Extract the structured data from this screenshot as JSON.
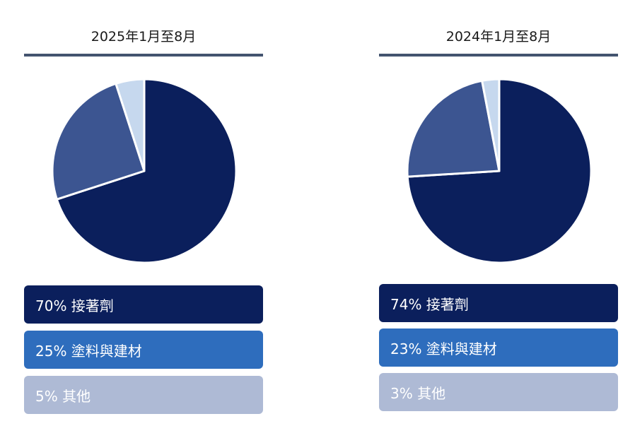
{
  "colors": {
    "slice_adhesives": "#0b1f5c",
    "slice_coatings": "#3c5591",
    "slice_other": "#c6d8ee",
    "legend_adhesives": "#0b1f5c",
    "legend_coatings": "#2e6dbd",
    "legend_other": "#aebad5",
    "title_rule": "#44546f",
    "slice_border": "#ffffff"
  },
  "chart_data": [
    {
      "type": "pie",
      "title": "2025年1月至8月",
      "categories": [
        "接著劑",
        "塗料與建材",
        "其他"
      ],
      "values": [
        70,
        25,
        5
      ],
      "legend": [
        {
          "label": "70% 接著劑"
        },
        {
          "label": "25% 塗料與建材"
        },
        {
          "label": "5% 其他"
        }
      ]
    },
    {
      "type": "pie",
      "title": "2024年1月至8月",
      "categories": [
        "接著劑",
        "塗料與建材",
        "其他"
      ],
      "values": [
        74,
        23,
        3
      ],
      "legend": [
        {
          "label": "74% 接著劑"
        },
        {
          "label": "23% 塗料與建材"
        },
        {
          "label": "3% 其他"
        }
      ]
    }
  ]
}
